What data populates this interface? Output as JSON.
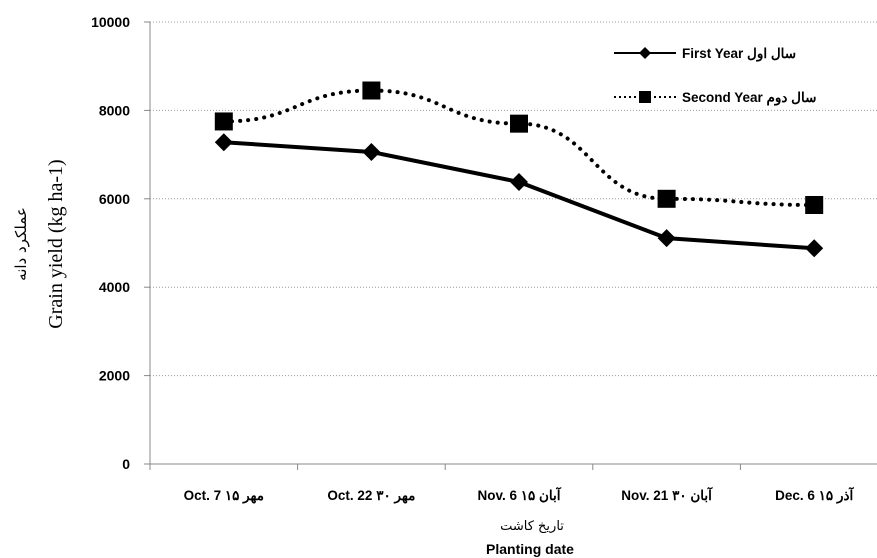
{
  "chart_data": {
    "type": "line",
    "categories": [
      "Oct. 7 ۱۵ مهر",
      "Oct. 22 ۳۰ مهر",
      "Nov. 6 ۱۵ آبان",
      "Nov. 21 ۳۰ آبان",
      "Dec. 6 ۱۵ آذر"
    ],
    "series": [
      {
        "name": "First Year سال اول",
        "values": [
          7280,
          7060,
          6380,
          5110,
          4880
        ],
        "line": "solid",
        "marker": "diamond",
        "color": "#000000"
      },
      {
        "name": "Second Year سال دوم",
        "values": [
          7750,
          8450,
          7700,
          6000,
          5860
        ],
        "line": "dotted",
        "marker": "square",
        "color": "#000000"
      }
    ],
    "ylim": [
      0,
      10000
    ],
    "yticks": [
      "0",
      "2000",
      "4000",
      "6000",
      "8000",
      "10000"
    ],
    "ylabel": "Grain yield (kg ha-1)",
    "ylabel_fa": "عملکرد دانه",
    "xlabel": "Planting date",
    "xlabel_fa": "تاریخ کاشت",
    "grid": "horizontal-dotted",
    "legend_position": "top-right"
  }
}
